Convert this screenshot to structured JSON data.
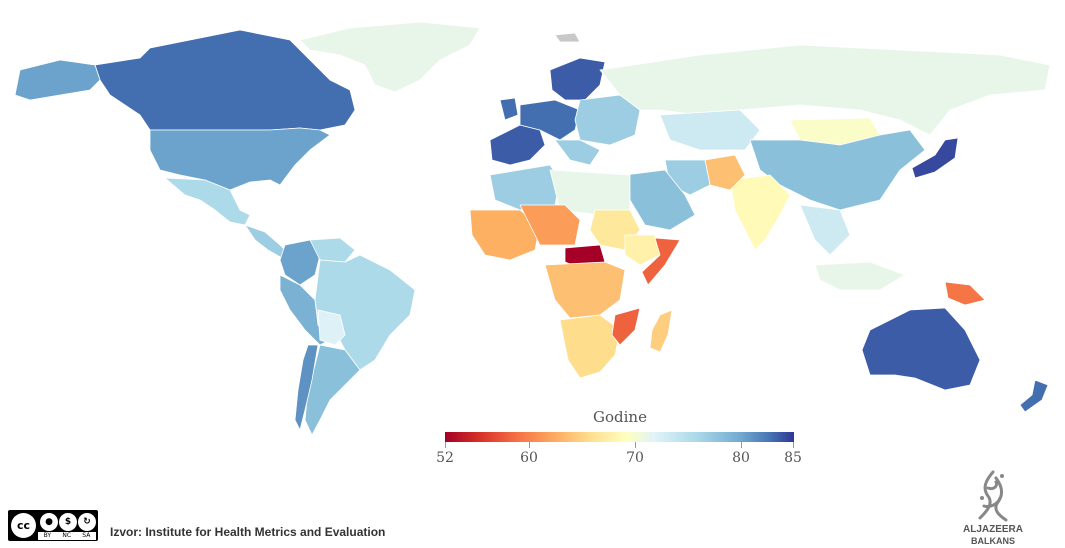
{
  "legend": {
    "title": "Godine",
    "ticks": [
      "52",
      "60",
      "70",
      "80",
      "85"
    ],
    "tick_values": [
      52,
      60,
      70,
      80,
      85
    ],
    "range": [
      52,
      85
    ],
    "colors": [
      "#a50026",
      "#d73027",
      "#f46d43",
      "#fdae61",
      "#fee090",
      "#ffffbf",
      "#e0f3f8",
      "#abd9e9",
      "#74add1",
      "#4575b4",
      "#313695"
    ]
  },
  "footer": {
    "source": "Izvor: Institute for Health Metrics and Evaluation",
    "license": [
      "BY",
      "NC",
      "SA"
    ],
    "license_mark": "cc"
  },
  "logo": {
    "name": "ALJAZEERA",
    "sub": "BALKANS"
  },
  "map": {
    "no_data_color": "#c8c8c8",
    "regions": [
      {
        "name": "Canada",
        "value": 82
      },
      {
        "name": "Greenland",
        "value": 71
      },
      {
        "name": "United States",
        "value": 79
      },
      {
        "name": "Mexico",
        "value": 75
      },
      {
        "name": "Central America",
        "value": 76
      },
      {
        "name": "Colombia",
        "value": 79
      },
      {
        "name": "Ecuador/Peru",
        "value": 78
      },
      {
        "name": "Brazil",
        "value": 75
      },
      {
        "name": "Bolivia",
        "value": 72
      },
      {
        "name": "Argentina",
        "value": 77
      },
      {
        "name": "Chile",
        "value": 80
      },
      {
        "name": "Europe West",
        "value": 82
      },
      {
        "name": "France/Spain",
        "value": 83
      },
      {
        "name": "Scandinavia",
        "value": 83
      },
      {
        "name": "Eastern Europe",
        "value": 76
      },
      {
        "name": "Russia",
        "value": 71
      },
      {
        "name": "Kazakhstan",
        "value": 73
      },
      {
        "name": "Mongolia",
        "value": 69
      },
      {
        "name": "China",
        "value": 77
      },
      {
        "name": "Japan",
        "value": 84
      },
      {
        "name": "India",
        "value": 68
      },
      {
        "name": "Afghanistan",
        "value": 63
      },
      {
        "name": "Middle East",
        "value": 77
      },
      {
        "name": "Iran",
        "value": 76
      },
      {
        "name": "North Africa",
        "value": 76
      },
      {
        "name": "Libya/Egypt",
        "value": 71
      },
      {
        "name": "West Africa",
        "value": 62
      },
      {
        "name": "Sahel",
        "value": 61
      },
      {
        "name": "Central African Republic",
        "value": 52
      },
      {
        "name": "Sudan",
        "value": 66
      },
      {
        "name": "Ethiopia",
        "value": 67
      },
      {
        "name": "Somalia",
        "value": 58
      },
      {
        "name": "Central Africa",
        "value": 63
      },
      {
        "name": "Southern Africa",
        "value": 65
      },
      {
        "name": "Mozambique",
        "value": 58
      },
      {
        "name": "Madagascar",
        "value": 64
      },
      {
        "name": "Southeast Asia",
        "value": 73
      },
      {
        "name": "Indonesia",
        "value": 71
      },
      {
        "name": "Papua New Guinea",
        "value": 59
      },
      {
        "name": "Australia",
        "value": 83
      },
      {
        "name": "New Zealand",
        "value": 82
      }
    ]
  }
}
